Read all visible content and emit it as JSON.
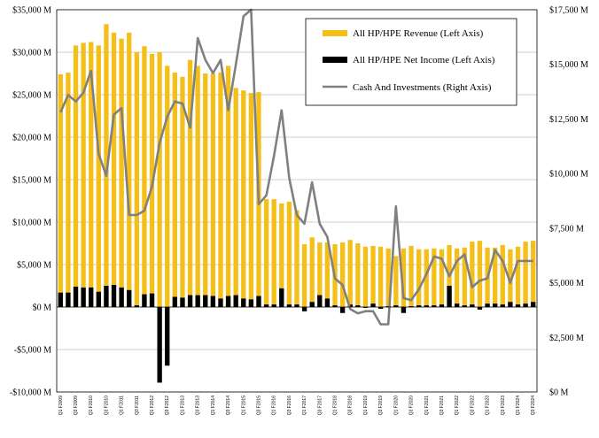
{
  "chart_data": {
    "type": "bar+line",
    "colors": {
      "revenue": "#F5BF1A",
      "net_income": "#000000",
      "cash": "#808080",
      "grid": "#BFBFBF"
    },
    "categories": [
      "Q1 F2009",
      "Q2 F2009",
      "Q3 F2009",
      "Q4 F2009",
      "Q1 F2010",
      "Q2 F2010",
      "Q3 F2010",
      "Q4 F2010",
      "Q1 F2011",
      "Q2 F2011",
      "Q3 F2011",
      "Q4 F2011",
      "Q1 F2012",
      "Q2 F2012",
      "Q3 F2012",
      "Q4 F2012",
      "Q1 F2013",
      "Q2 F2013",
      "Q3 F2013",
      "Q4 F2013",
      "Q1 F2014",
      "Q2 F2014",
      "Q3 F2014",
      "Q4 F2014",
      "Q1 F2015",
      "Q2 F2015",
      "Q3 F2015",
      "Q4 F2015",
      "Q1 F2016",
      "Q2 F2016",
      "Q3 F2016",
      "Q4 F2016",
      "Q1 F2017",
      "Q2 F2017",
      "Q3 F2017",
      "Q4 F2017",
      "Q1 F2018",
      "Q2 F2018",
      "Q3 F2018",
      "Q4 F2018",
      "Q1 F2019",
      "Q2 F2019",
      "Q3 F2019",
      "Q4 F2019",
      "Q1 F2020",
      "Q2 F2020",
      "Q3 F2020",
      "Q4 F2020",
      "Q1 F2021",
      "Q2 F2021",
      "Q3 F2021",
      "Q4 F2021",
      "Q1 F2022",
      "Q2 F2022",
      "Q3 F2022",
      "Q4 F2022",
      "Q1 F2023",
      "Q2 F2023",
      "Q3 F2023",
      "Q4 F2023",
      "Q1 F2024",
      "Q2 F2024",
      "Q3 F2024"
    ],
    "x_tick_labels": [
      "Q1 F2009",
      "Q3 F2009",
      "Q1 F2010",
      "Q3 F2010",
      "Q1 F2011",
      "Q3 F2011",
      "Q1 F2012",
      "Q3 F2012",
      "Q1 F2013",
      "Q3 F2013",
      "Q1 F2014",
      "Q3 F2014",
      "Q1 F2015",
      "Q3 F2015",
      "Q1 F2016",
      "Q3 F2016",
      "Q1 F2017",
      "Q3 F2017",
      "Q1 F2018",
      "Q3 F2018",
      "Q1 F2019",
      "Q3 F2019",
      "Q1 F2020",
      "Q3 F2020",
      "Q1 F2021",
      "Q3 F2021",
      "Q1 F2022",
      "Q3 F2022",
      "Q1 F2023",
      "Q3 F2023",
      "Q1 F2024",
      "Q3 F2024"
    ],
    "left_axis": {
      "ylim": [
        -10000,
        35000
      ],
      "ticks": [
        -10000,
        -5000,
        0,
        5000,
        10000,
        15000,
        20000,
        25000,
        30000,
        35000
      ],
      "tick_labels": [
        "-$10,000 M",
        "-$5,000 M",
        "$0 M",
        "$5,000 M",
        "$10,000 M",
        "$15,000 M",
        "$20,000 M",
        "$25,000 M",
        "$30,000 M",
        "$35,000 M"
      ]
    },
    "right_axis": {
      "ylim": [
        0,
        17500
      ],
      "ticks": [
        0,
        2500,
        5000,
        7500,
        10000,
        12500,
        15000,
        17500
      ],
      "tick_labels": [
        "$0 M",
        "$2,500 M",
        "$5,000 M",
        "$7,500 M",
        "$10,000 M",
        "$12,500 M",
        "$15,000 M",
        "$17,500 M"
      ]
    },
    "grid": true,
    "legend_position": "top-right",
    "series": [
      {
        "name": "All HP/HPE Revenue (Left Axis)",
        "type": "bar",
        "axis": "left",
        "values": [
          27400,
          27600,
          30800,
          31100,
          31200,
          30800,
          33300,
          32300,
          31600,
          32300,
          30000,
          30700,
          29800,
          30000,
          28400,
          27600,
          27100,
          29100,
          28400,
          27500,
          27500,
          27600,
          28400,
          25800,
          25500,
          25200,
          25300,
          12700,
          12700,
          12200,
          12400,
          11400,
          7400,
          8200,
          7600,
          7600,
          7400,
          7600,
          7900,
          7500,
          7100,
          7200,
          7100,
          6900,
          6000,
          6900,
          7200,
          6800,
          6800,
          6900,
          6800,
          7300,
          6900,
          7000,
          7700,
          7800,
          7000,
          7000,
          7300,
          6800,
          7100,
          7700,
          7800
        ]
      },
      {
        "name": "All HP/HPE Net Income (Left Axis)",
        "type": "bar",
        "axis": "left",
        "values": [
          1700,
          1700,
          2400,
          2300,
          2300,
          1800,
          2500,
          2600,
          2300,
          2000,
          200,
          1500,
          1600,
          -8900,
          -6900,
          1200,
          1100,
          1400,
          1400,
          1400,
          1300,
          1000,
          1300,
          1400,
          1000,
          900,
          1300,
          300,
          300,
          2200,
          300,
          300,
          -500,
          600,
          1400,
          1000,
          200,
          -700,
          300,
          200,
          -100,
          400,
          -200,
          100,
          200,
          -700,
          100,
          200,
          200,
          200,
          300,
          2500,
          400,
          200,
          300,
          -300,
          400,
          400,
          300,
          600,
          300,
          400,
          600
        ]
      },
      {
        "name": "Cash And Investments (Right Axis)",
        "type": "line",
        "axis": "right",
        "values": [
          12800,
          13600,
          13300,
          13700,
          14700,
          10900,
          9900,
          12700,
          13000,
          8100,
          8100,
          8300,
          9400,
          11400,
          12600,
          13300,
          13200,
          12100,
          16200,
          15200,
          14600,
          15200,
          12900,
          15000,
          17200,
          17500,
          8600,
          9000,
          10800,
          12900,
          9800,
          8100,
          7700,
          9600,
          7700,
          7100,
          5200,
          4900,
          3800,
          3600,
          3700,
          3700,
          3100,
          3100,
          8500,
          4300,
          4200,
          4700,
          5400,
          6200,
          6100,
          5300,
          6000,
          6300,
          4800,
          5100,
          5200,
          6500,
          6000,
          5000,
          6000,
          6000,
          6000
        ]
      }
    ]
  }
}
